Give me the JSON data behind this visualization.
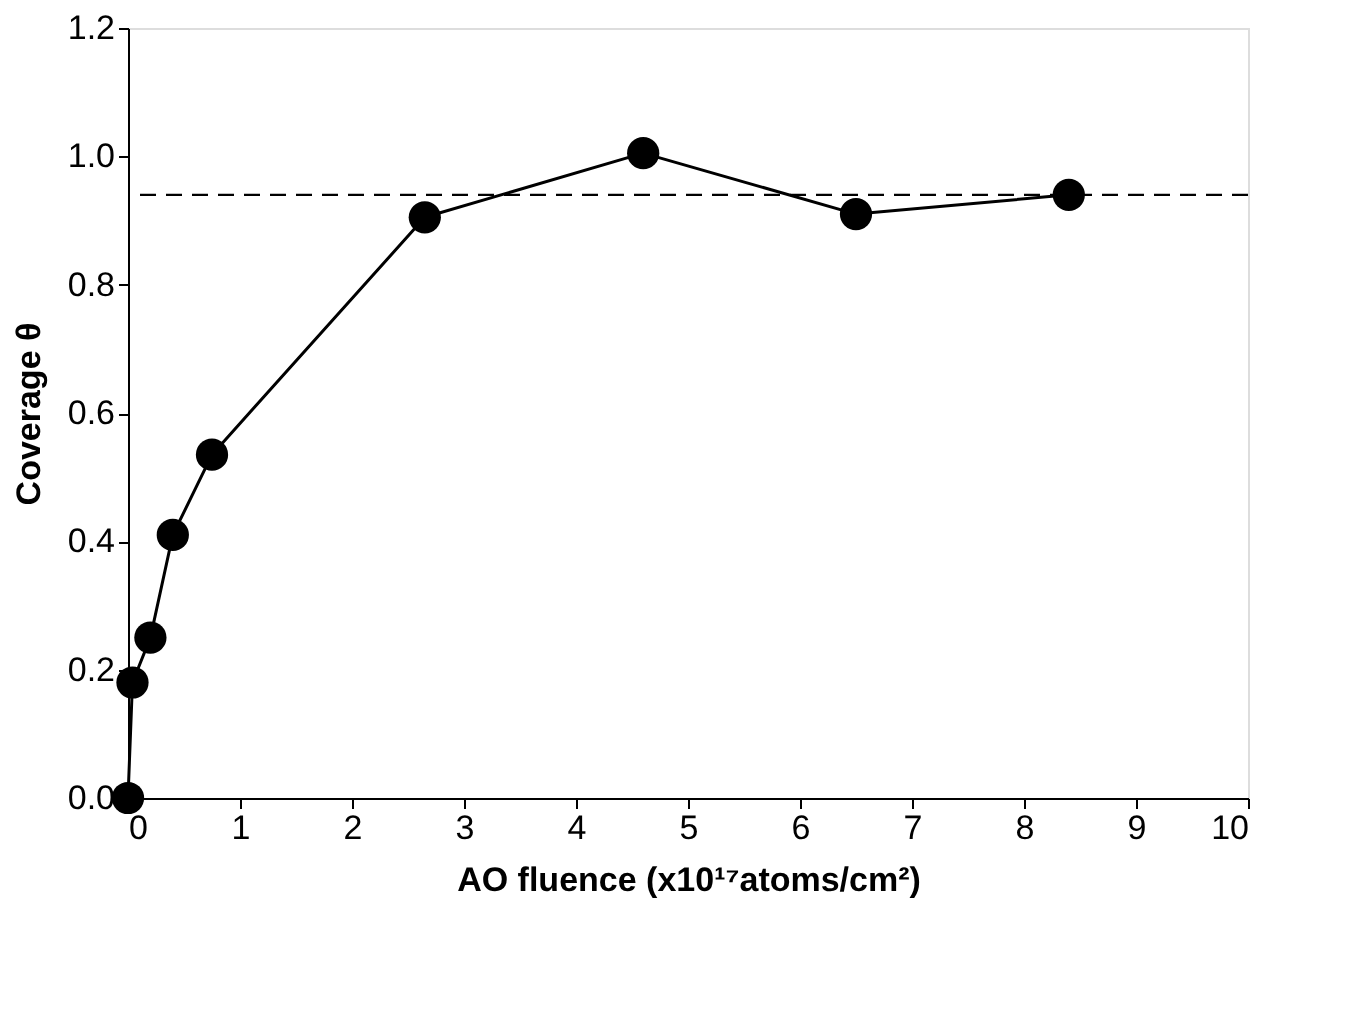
{
  "chart_data": {
    "type": "line",
    "xlabel": "AO fluence (x10¹⁷atoms/cm²)",
    "ylabel": "Coverage θ",
    "x": [
      0,
      0.04,
      0.2,
      0.4,
      0.75,
      2.65,
      4.6,
      6.5,
      8.4
    ],
    "series": [
      {
        "color": "#000000",
        "values": [
          0,
          0.18,
          0.25,
          0.41,
          0.535,
          0.905,
          1.005,
          0.91,
          0.94
        ]
      }
    ],
    "xlim": [
      0,
      10
    ],
    "xticks": [
      0,
      1,
      2,
      3,
      4,
      5,
      6,
      7,
      8,
      9,
      10
    ],
    "ylim": [
      0,
      1.2
    ],
    "yticks": [
      {
        "value": 0,
        "label": "0.0"
      },
      {
        "value": 0.2,
        "label": "0.2"
      },
      {
        "value": 0.4,
        "label": "0.4"
      },
      {
        "value": 0.6,
        "label": "0.6"
      },
      {
        "value": 0.8,
        "label": "0.8"
      },
      {
        "value": 1.0,
        "label": "1.0"
      },
      {
        "value": 1.2,
        "label": "1.2"
      }
    ],
    "ref_lines": [
      {
        "axis": "y",
        "value": 0.94,
        "line_style": "dashed",
        "color": "#000000"
      }
    ],
    "marker": "circle",
    "line_style": "solid",
    "grid": false
  }
}
